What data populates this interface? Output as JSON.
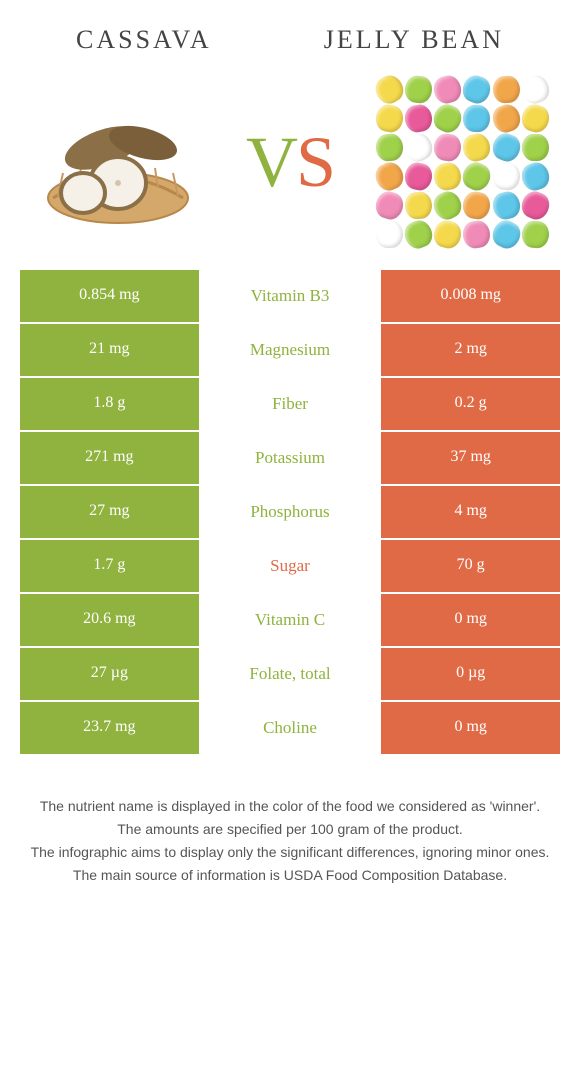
{
  "header": {
    "left_title": "cassava",
    "right_title": "jelly bean"
  },
  "vs": {
    "v": "V",
    "s": "S"
  },
  "colors": {
    "left": "#8fb33e",
    "right": "#e06a45",
    "bg": "#ffffff",
    "text": "#555555"
  },
  "comparison": {
    "rows": [
      {
        "left": "0.854 mg",
        "label": "Vitamin B3",
        "right": "0.008 mg",
        "winner": "left"
      },
      {
        "left": "21 mg",
        "label": "Magnesium",
        "right": "2 mg",
        "winner": "left"
      },
      {
        "left": "1.8 g",
        "label": "Fiber",
        "right": "0.2 g",
        "winner": "left"
      },
      {
        "left": "271 mg",
        "label": "Potassium",
        "right": "37 mg",
        "winner": "left"
      },
      {
        "left": "27 mg",
        "label": "Phosphorus",
        "right": "4 mg",
        "winner": "left"
      },
      {
        "left": "1.7 g",
        "label": "Sugar",
        "right": "70 g",
        "winner": "right"
      },
      {
        "left": "20.6 mg",
        "label": "Vitamin C",
        "right": "0 mg",
        "winner": "left"
      },
      {
        "left": "27 µg",
        "label": "Folate, total",
        "right": "0 µg",
        "winner": "left"
      },
      {
        "left": "23.7 mg",
        "label": "Choline",
        "right": "0 mg",
        "winner": "left"
      }
    ]
  },
  "footer": {
    "lines": [
      "The nutrient name is displayed in the color of the food we considered as 'winner'.",
      "The amounts are specified per 100 gram of the product.",
      "The infographic aims to display only the significant differences, ignoring minor ones.",
      "The main source of information is USDA Food Composition Database."
    ]
  },
  "jelly_colors": [
    "#f5d94c",
    "#9fd14a",
    "#f08bb8",
    "#5ec6e8",
    "#f2a64a",
    "#ffffff",
    "#f5d94c",
    "#e85a9a",
    "#9fd14a",
    "#5ec6e8",
    "#f2a64a",
    "#f5d94c",
    "#9fd14a",
    "#ffffff",
    "#f08bb8",
    "#f5d94c",
    "#5ec6e8",
    "#9fd14a",
    "#f2a64a",
    "#e85a9a",
    "#f5d94c",
    "#9fd14a",
    "#ffffff",
    "#5ec6e8",
    "#f08bb8",
    "#f5d94c",
    "#9fd14a",
    "#f2a64a",
    "#5ec6e8",
    "#e85a9a",
    "#ffffff",
    "#9fd14a",
    "#f5d94c",
    "#f08bb8",
    "#5ec6e8",
    "#9fd14a"
  ]
}
